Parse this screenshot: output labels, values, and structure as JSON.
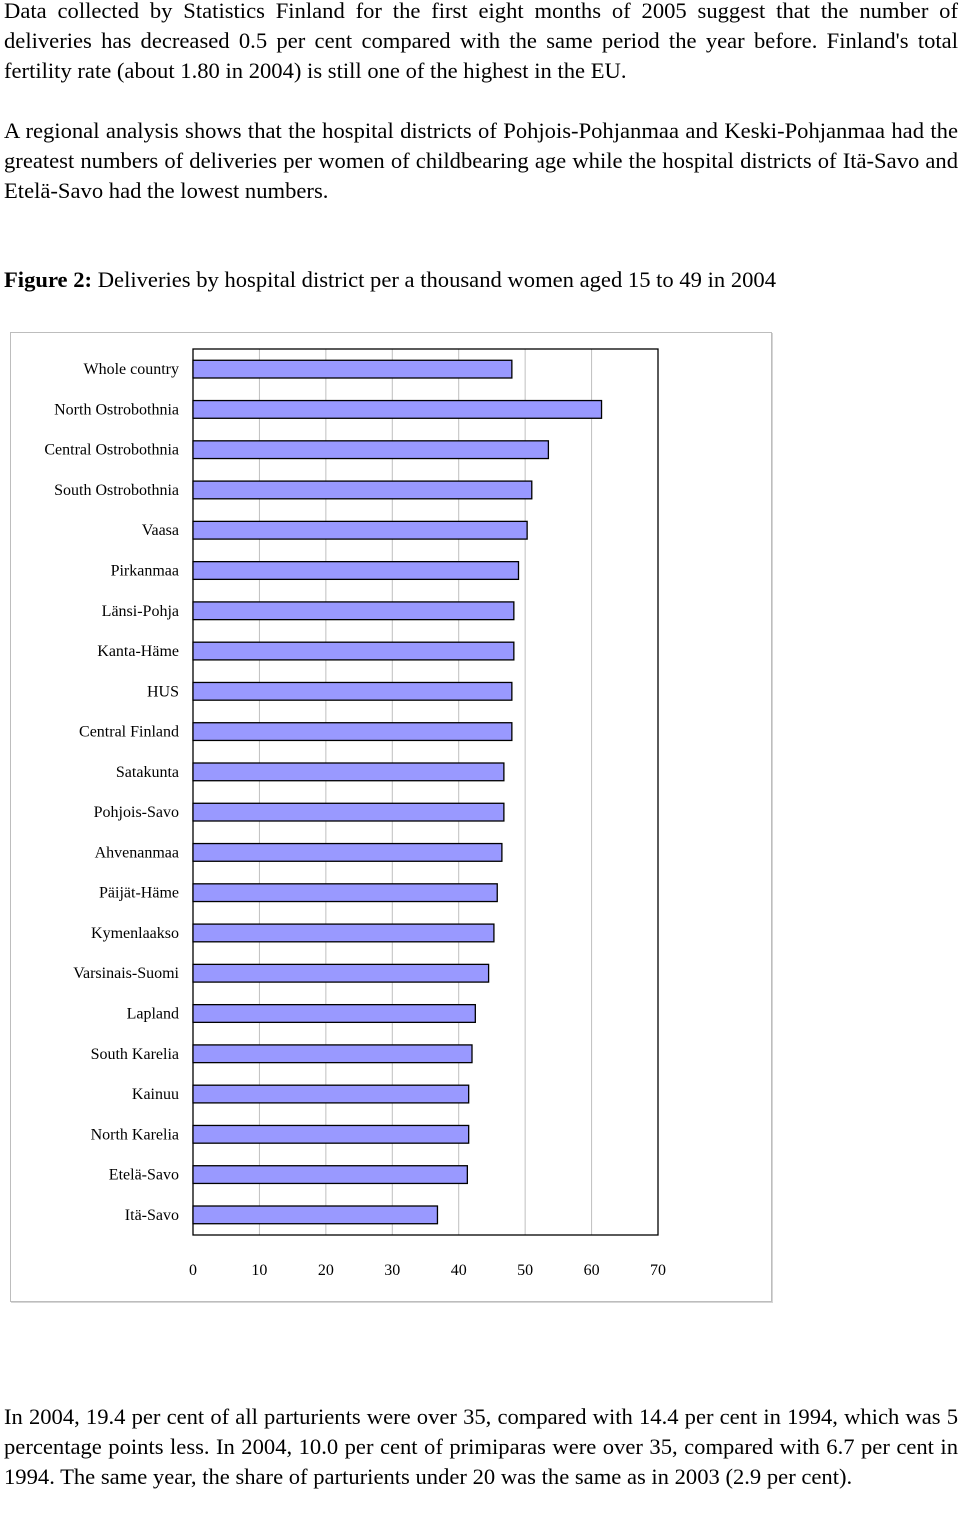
{
  "paragraphs": {
    "p1": "Data collected by Statistics Finland for the first eight months of 2005 suggest that the number of deliveries has decreased 0.5 per cent compared with the same period the year before. Finland's total fertility rate (about 1.80 in 2004) is still one of the highest in the EU.",
    "p2": "A regional analysis shows that the hospital districts of Pohjois-Pohjanmaa and Keski-Pohjanmaa had the greatest numbers of deliveries per women of childbearing age while the hospital districts of Itä-Savo and Etelä-Savo had the lowest numbers.",
    "p3": "In 2004, 19.4 per cent of all parturients were over 35, compared with 14.4 per cent in 1994, which was 5 percentage points less. In 2004, 10.0 per cent of primiparas were over 35, compared with 6.7 per cent in 1994. The same year, the share of parturients under 20 was the same as in 2003 (2.9 per cent)."
  },
  "figure": {
    "label": "Figure 2:",
    "caption": "Deliveries by hospital district per a thousand women aged 15 to 49 in 2004"
  },
  "colors": {
    "bar_fill": "#9999ff",
    "bar_stroke": "#000000",
    "grid": "#bfbfbf"
  },
  "chart_data": {
    "type": "bar",
    "orientation": "horizontal",
    "categories": [
      "Whole country",
      "North Ostrobothnia",
      "Central Ostrobothnia",
      "South Ostrobothnia",
      "Vaasa",
      "Pirkanmaa",
      "Länsi-Pohja",
      "Kanta-Häme",
      "HUS",
      "Central Finland",
      "Satakunta",
      "Pohjois-Savo",
      "Ahvenanmaa",
      "Päijät-Häme",
      "Kymenlaakso",
      "Varsinais-Suomi",
      "Lapland",
      "South Karelia",
      "Kainuu",
      "North Karelia",
      "Etelä-Savo",
      "Itä-Savo"
    ],
    "values": [
      48.0,
      61.5,
      53.5,
      51.0,
      50.3,
      49.0,
      48.3,
      48.3,
      48.0,
      48.0,
      46.8,
      46.8,
      46.5,
      45.8,
      45.3,
      44.5,
      42.5,
      42.0,
      41.5,
      41.5,
      41.3,
      36.8
    ],
    "xticks": [
      "0",
      "10",
      "20",
      "30",
      "40",
      "50",
      "60",
      "70"
    ],
    "xlim": [
      0,
      70
    ],
    "grid": true
  }
}
